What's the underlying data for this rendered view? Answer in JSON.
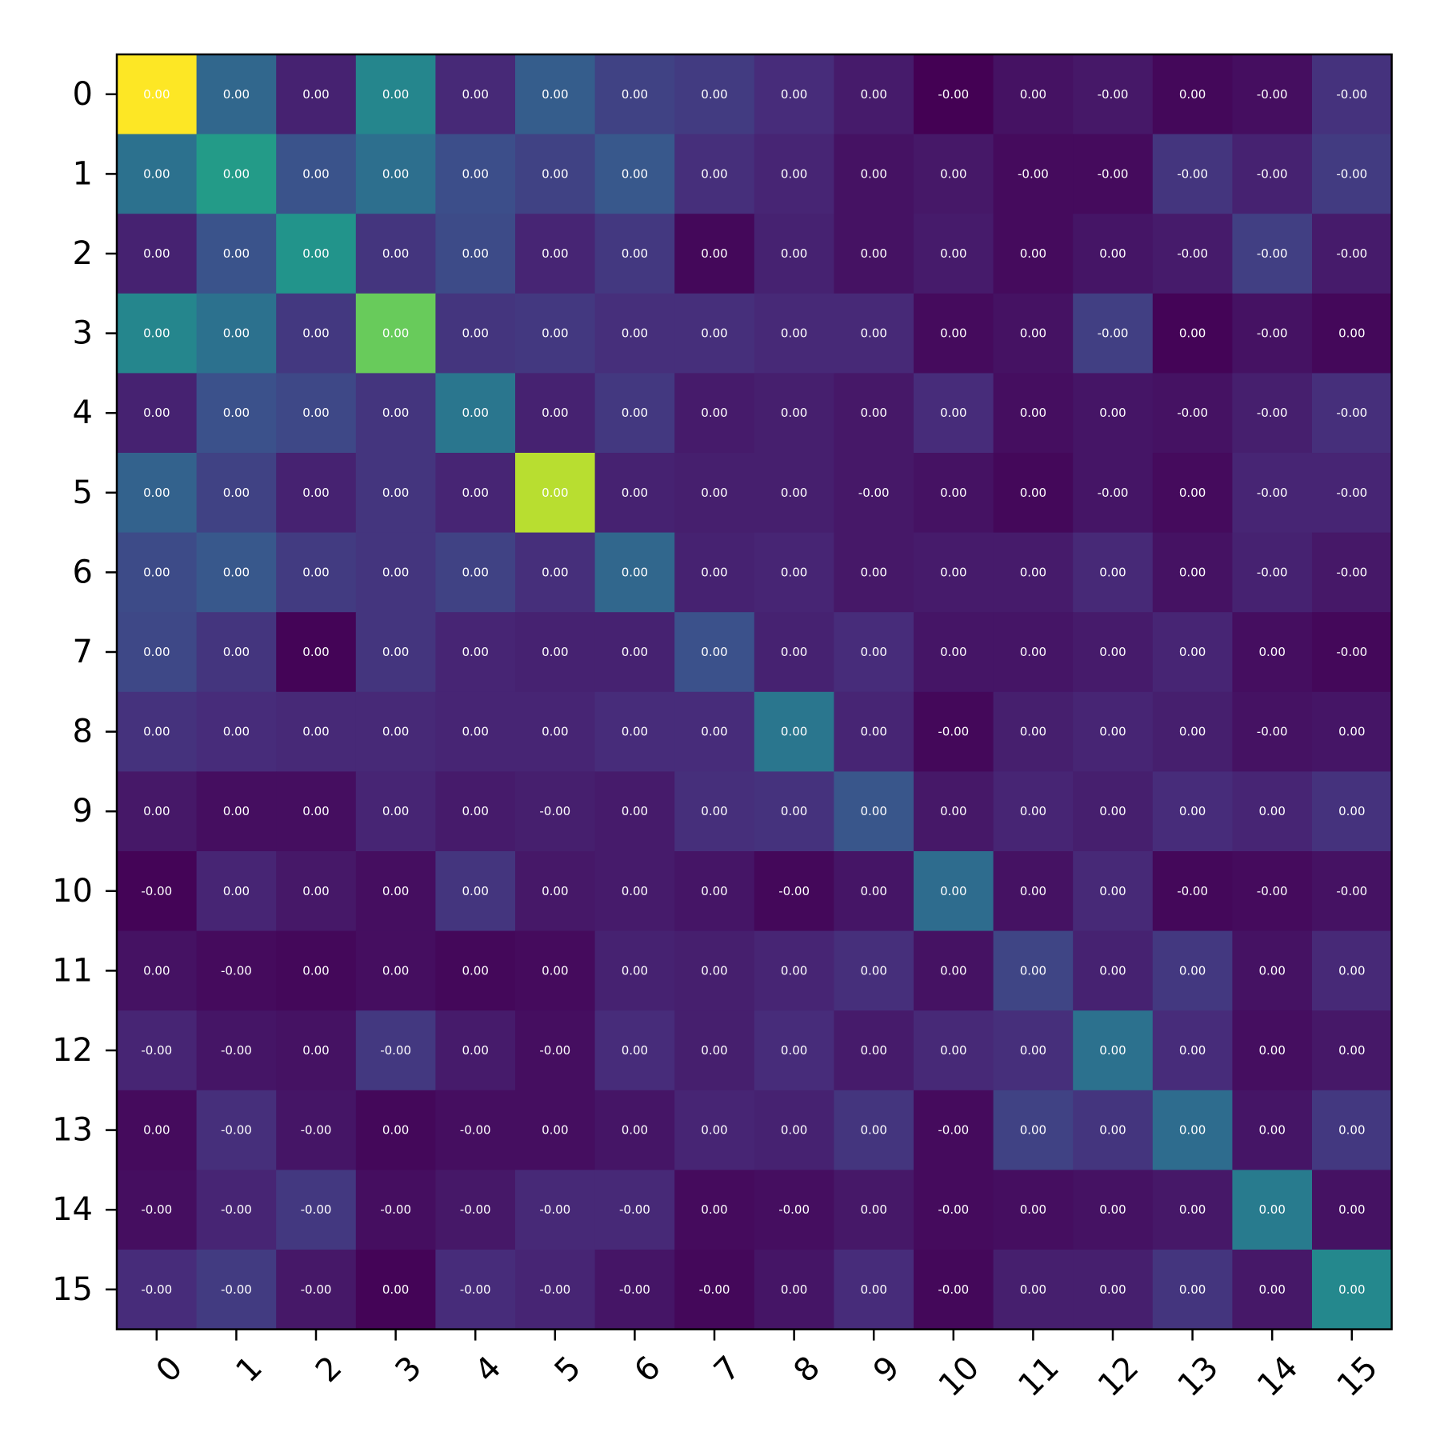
{
  "chart_data": {
    "type": "heatmap",
    "title": "",
    "xlabel": "",
    "ylabel": "",
    "colormap": "viridis",
    "grid": false,
    "legend": "none",
    "x_ticks": [
      "0",
      "1",
      "2",
      "3",
      "4",
      "5",
      "6",
      "7",
      "8",
      "9",
      "10",
      "11",
      "12",
      "13",
      "14",
      "15"
    ],
    "y_ticks": [
      "0",
      "1",
      "2",
      "3",
      "4",
      "5",
      "6",
      "7",
      "8",
      "9",
      "10",
      "11",
      "12",
      "13",
      "14",
      "15"
    ],
    "labels": [
      [
        "0.00",
        "0.00",
        "0.00",
        "0.00",
        "0.00",
        "0.00",
        "0.00",
        "0.00",
        "0.00",
        "0.00",
        "-0.00",
        "0.00",
        "-0.00",
        "0.00",
        "-0.00",
        "-0.00"
      ],
      [
        "0.00",
        "0.00",
        "0.00",
        "0.00",
        "0.00",
        "0.00",
        "0.00",
        "0.00",
        "0.00",
        "0.00",
        "0.00",
        "-0.00",
        "-0.00",
        "-0.00",
        "-0.00",
        "-0.00"
      ],
      [
        "0.00",
        "0.00",
        "0.00",
        "0.00",
        "0.00",
        "0.00",
        "0.00",
        "0.00",
        "0.00",
        "0.00",
        "0.00",
        "0.00",
        "0.00",
        "-0.00",
        "-0.00",
        "-0.00"
      ],
      [
        "0.00",
        "0.00",
        "0.00",
        "0.00",
        "0.00",
        "0.00",
        "0.00",
        "0.00",
        "0.00",
        "0.00",
        "0.00",
        "0.00",
        "-0.00",
        "0.00",
        "-0.00",
        "0.00"
      ],
      [
        "0.00",
        "0.00",
        "0.00",
        "0.00",
        "0.00",
        "0.00",
        "0.00",
        "0.00",
        "0.00",
        "0.00",
        "0.00",
        "0.00",
        "0.00",
        "-0.00",
        "-0.00",
        "-0.00"
      ],
      [
        "0.00",
        "0.00",
        "0.00",
        "0.00",
        "0.00",
        "0.00",
        "0.00",
        "0.00",
        "0.00",
        "-0.00",
        "0.00",
        "0.00",
        "-0.00",
        "0.00",
        "-0.00",
        "-0.00"
      ],
      [
        "0.00",
        "0.00",
        "0.00",
        "0.00",
        "0.00",
        "0.00",
        "0.00",
        "0.00",
        "0.00",
        "0.00",
        "0.00",
        "0.00",
        "0.00",
        "0.00",
        "-0.00",
        "-0.00"
      ],
      [
        "0.00",
        "0.00",
        "0.00",
        "0.00",
        "0.00",
        "0.00",
        "0.00",
        "0.00",
        "0.00",
        "0.00",
        "0.00",
        "0.00",
        "0.00",
        "0.00",
        "0.00",
        "-0.00"
      ],
      [
        "0.00",
        "0.00",
        "0.00",
        "0.00",
        "0.00",
        "0.00",
        "0.00",
        "0.00",
        "0.00",
        "0.00",
        "-0.00",
        "0.00",
        "0.00",
        "0.00",
        "-0.00",
        "0.00"
      ],
      [
        "0.00",
        "0.00",
        "0.00",
        "0.00",
        "0.00",
        "-0.00",
        "0.00",
        "0.00",
        "0.00",
        "0.00",
        "0.00",
        "0.00",
        "0.00",
        "0.00",
        "0.00",
        "0.00"
      ],
      [
        "-0.00",
        "0.00",
        "0.00",
        "0.00",
        "0.00",
        "0.00",
        "0.00",
        "0.00",
        "-0.00",
        "0.00",
        "0.00",
        "0.00",
        "0.00",
        "-0.00",
        "-0.00",
        "-0.00"
      ],
      [
        "0.00",
        "-0.00",
        "0.00",
        "0.00",
        "0.00",
        "0.00",
        "0.00",
        "0.00",
        "0.00",
        "0.00",
        "0.00",
        "0.00",
        "0.00",
        "0.00",
        "0.00",
        "0.00"
      ],
      [
        "-0.00",
        "-0.00",
        "0.00",
        "-0.00",
        "0.00",
        "-0.00",
        "0.00",
        "0.00",
        "0.00",
        "0.00",
        "0.00",
        "0.00",
        "0.00",
        "0.00",
        "0.00",
        "0.00"
      ],
      [
        "0.00",
        "-0.00",
        "-0.00",
        "0.00",
        "-0.00",
        "0.00",
        "0.00",
        "0.00",
        "0.00",
        "0.00",
        "-0.00",
        "0.00",
        "0.00",
        "0.00",
        "0.00",
        "0.00"
      ],
      [
        "-0.00",
        "-0.00",
        "-0.00",
        "-0.00",
        "-0.00",
        "-0.00",
        "-0.00",
        "0.00",
        "-0.00",
        "0.00",
        "-0.00",
        "0.00",
        "0.00",
        "0.00",
        "0.00",
        "0.00"
      ],
      [
        "-0.00",
        "-0.00",
        "-0.00",
        "0.00",
        "-0.00",
        "-0.00",
        "-0.00",
        "-0.00",
        "0.00",
        "0.00",
        "-0.00",
        "0.00",
        "0.00",
        "0.00",
        "0.00",
        "0.00"
      ]
    ],
    "intensity": [
      [
        1.0,
        0.34,
        0.1,
        0.46,
        0.12,
        0.3,
        0.2,
        0.18,
        0.13,
        0.08,
        0.0,
        0.05,
        0.07,
        0.02,
        0.04,
        0.15
      ],
      [
        0.38,
        0.55,
        0.26,
        0.37,
        0.24,
        0.2,
        0.28,
        0.14,
        0.11,
        0.05,
        0.07,
        0.03,
        0.03,
        0.16,
        0.1,
        0.18
      ],
      [
        0.1,
        0.26,
        0.52,
        0.16,
        0.23,
        0.11,
        0.17,
        0.02,
        0.1,
        0.05,
        0.08,
        0.03,
        0.06,
        0.08,
        0.19,
        0.08
      ],
      [
        0.46,
        0.38,
        0.17,
        0.77,
        0.16,
        0.17,
        0.14,
        0.14,
        0.12,
        0.12,
        0.03,
        0.05,
        0.19,
        0.01,
        0.05,
        0.02
      ],
      [
        0.1,
        0.25,
        0.22,
        0.16,
        0.4,
        0.1,
        0.17,
        0.08,
        0.09,
        0.07,
        0.13,
        0.04,
        0.06,
        0.05,
        0.09,
        0.14
      ],
      [
        0.32,
        0.2,
        0.1,
        0.16,
        0.11,
        0.9,
        0.1,
        0.09,
        0.09,
        0.07,
        0.05,
        0.02,
        0.06,
        0.03,
        0.11,
        0.11
      ],
      [
        0.23,
        0.28,
        0.18,
        0.16,
        0.2,
        0.14,
        0.34,
        0.1,
        0.11,
        0.07,
        0.08,
        0.08,
        0.12,
        0.05,
        0.1,
        0.07
      ],
      [
        0.22,
        0.16,
        0.01,
        0.16,
        0.11,
        0.1,
        0.1,
        0.25,
        0.1,
        0.13,
        0.06,
        0.06,
        0.08,
        0.11,
        0.04,
        0.02
      ],
      [
        0.15,
        0.13,
        0.12,
        0.12,
        0.11,
        0.11,
        0.13,
        0.13,
        0.4,
        0.11,
        0.02,
        0.09,
        0.11,
        0.09,
        0.05,
        0.06
      ],
      [
        0.07,
        0.04,
        0.04,
        0.11,
        0.08,
        0.09,
        0.08,
        0.14,
        0.15,
        0.27,
        0.07,
        0.11,
        0.09,
        0.13,
        0.11,
        0.15
      ],
      [
        0.01,
        0.11,
        0.07,
        0.04,
        0.16,
        0.07,
        0.08,
        0.06,
        0.02,
        0.06,
        0.36,
        0.05,
        0.12,
        0.02,
        0.03,
        0.05
      ],
      [
        0.05,
        0.03,
        0.02,
        0.04,
        0.02,
        0.03,
        0.1,
        0.09,
        0.11,
        0.14,
        0.05,
        0.21,
        0.1,
        0.17,
        0.05,
        0.12
      ],
      [
        0.11,
        0.06,
        0.05,
        0.17,
        0.08,
        0.04,
        0.13,
        0.09,
        0.13,
        0.08,
        0.12,
        0.14,
        0.38,
        0.13,
        0.04,
        0.07
      ],
      [
        0.03,
        0.14,
        0.06,
        0.02,
        0.04,
        0.04,
        0.06,
        0.11,
        0.1,
        0.16,
        0.03,
        0.2,
        0.16,
        0.36,
        0.06,
        0.17
      ],
      [
        0.04,
        0.11,
        0.17,
        0.04,
        0.07,
        0.12,
        0.12,
        0.03,
        0.04,
        0.07,
        0.03,
        0.04,
        0.05,
        0.07,
        0.42,
        0.05
      ],
      [
        0.13,
        0.18,
        0.07,
        0.01,
        0.13,
        0.11,
        0.06,
        0.02,
        0.06,
        0.13,
        0.02,
        0.09,
        0.09,
        0.16,
        0.07,
        0.47
      ]
    ]
  }
}
